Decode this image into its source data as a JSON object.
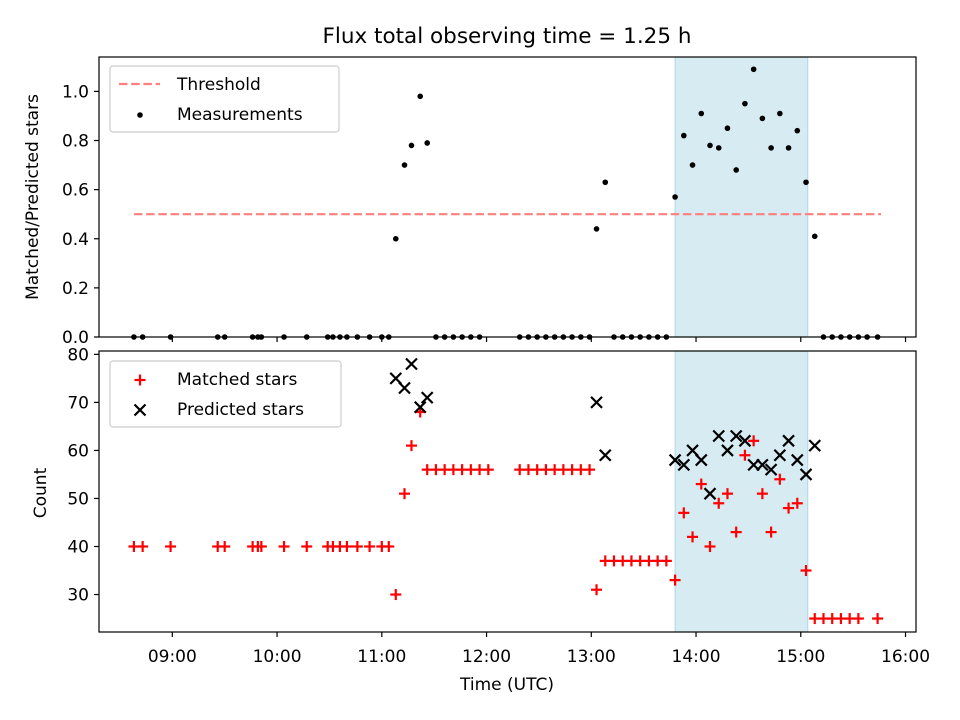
{
  "chart_data": [
    {
      "type": "scatter",
      "title": "Flux total observing time = 1.25 h",
      "xlabel": "",
      "ylabel": "Matched/Predicted stars",
      "xlim": [
        "08:18",
        "16:06"
      ],
      "ylim": [
        0,
        1.14
      ],
      "yticks": [
        "0.0",
        "0.2",
        "0.4",
        "0.6",
        "0.8",
        "1.0"
      ],
      "grid": false,
      "legend_position": "upper-left",
      "shaded_span": {
        "x0": "13:48",
        "x1": "15:04",
        "color": "#add8e6"
      },
      "threshold": {
        "name": "Threshold",
        "value": 0.5,
        "x0": "08:38",
        "x1": "15:46",
        "color": "#ff7f7f",
        "style": "dashed"
      },
      "series": [
        {
          "name": "Measurements",
          "color": "#000000",
          "marker": "dot",
          "points": [
            [
              "08:38",
              0
            ],
            [
              "08:43",
              0
            ],
            [
              "08:59",
              0
            ],
            [
              "09:26",
              0
            ],
            [
              "09:30",
              0
            ],
            [
              "09:46",
              0
            ],
            [
              "09:49",
              0
            ],
            [
              "09:51",
              0
            ],
            [
              "10:04",
              0
            ],
            [
              "10:17",
              0
            ],
            [
              "10:29",
              0
            ],
            [
              "10:32",
              0
            ],
            [
              "10:36",
              0
            ],
            [
              "10:40",
              0
            ],
            [
              "10:46",
              0
            ],
            [
              "10:53",
              0
            ],
            [
              "11:00",
              0
            ],
            [
              "11:04",
              0
            ],
            [
              "11:08",
              0.4
            ],
            [
              "11:13",
              0.7
            ],
            [
              "11:17",
              0.78
            ],
            [
              "11:22",
              0.98
            ],
            [
              "11:26",
              0.79
            ],
            [
              "11:31",
              0
            ],
            [
              "11:36",
              0
            ],
            [
              "11:41",
              0
            ],
            [
              "11:46",
              0
            ],
            [
              "11:51",
              0
            ],
            [
              "11:56",
              0
            ],
            [
              "12:19",
              0
            ],
            [
              "12:24",
              0
            ],
            [
              "12:29",
              0
            ],
            [
              "12:34",
              0
            ],
            [
              "12:39",
              0
            ],
            [
              "12:44",
              0
            ],
            [
              "12:49",
              0
            ],
            [
              "12:54",
              0
            ],
            [
              "12:59",
              0
            ],
            [
              "13:03",
              0.44
            ],
            [
              "13:08",
              0.63
            ],
            [
              "13:13",
              0
            ],
            [
              "13:18",
              0
            ],
            [
              "13:23",
              0
            ],
            [
              "13:28",
              0
            ],
            [
              "13:33",
              0
            ],
            [
              "13:38",
              0
            ],
            [
              "13:43",
              0
            ],
            [
              "13:48",
              0.57
            ],
            [
              "13:53",
              0.82
            ],
            [
              "13:58",
              0.7
            ],
            [
              "14:03",
              0.91
            ],
            [
              "14:08",
              0.78
            ],
            [
              "14:13",
              0.77
            ],
            [
              "14:18",
              0.85
            ],
            [
              "14:23",
              0.68
            ],
            [
              "14:28",
              0.95
            ],
            [
              "14:33",
              1.09
            ],
            [
              "14:38",
              0.89
            ],
            [
              "14:43",
              0.77
            ],
            [
              "14:48",
              0.91
            ],
            [
              "14:53",
              0.77
            ],
            [
              "14:58",
              0.84
            ],
            [
              "15:03",
              0.63
            ],
            [
              "15:08",
              0.41
            ],
            [
              "15:13",
              0
            ],
            [
              "15:18",
              0
            ],
            [
              "15:23",
              0
            ],
            [
              "15:28",
              0
            ],
            [
              "15:33",
              0
            ],
            [
              "15:38",
              0
            ],
            [
              "15:44",
              0
            ]
          ]
        }
      ]
    },
    {
      "type": "scatter",
      "title": "",
      "xlabel": "Time (UTC)",
      "ylabel": "Count",
      "xlim": [
        "08:18",
        "16:06"
      ],
      "ylim": [
        22.2,
        80.7
      ],
      "yticks": [
        "30",
        "40",
        "50",
        "60",
        "70",
        "80"
      ],
      "xticks": [
        "09:00",
        "10:00",
        "11:00",
        "12:00",
        "13:00",
        "14:00",
        "15:00",
        "16:00"
      ],
      "grid": false,
      "legend_position": "upper-left",
      "shaded_span": {
        "x0": "13:48",
        "x1": "15:04",
        "color": "#add8e6"
      },
      "series": [
        {
          "name": "Matched stars",
          "color": "#ff0000",
          "marker": "plus",
          "points": [
            [
              "08:38",
              40
            ],
            [
              "08:43",
              40
            ],
            [
              "08:59",
              40
            ],
            [
              "09:26",
              40
            ],
            [
              "09:30",
              40
            ],
            [
              "09:46",
              40
            ],
            [
              "09:49",
              40
            ],
            [
              "09:51",
              40
            ],
            [
              "10:04",
              40
            ],
            [
              "10:17",
              40
            ],
            [
              "10:29",
              40
            ],
            [
              "10:32",
              40
            ],
            [
              "10:36",
              40
            ],
            [
              "10:40",
              40
            ],
            [
              "10:46",
              40
            ],
            [
              "10:53",
              40
            ],
            [
              "11:00",
              40
            ],
            [
              "11:04",
              40
            ],
            [
              "11:08",
              30
            ],
            [
              "11:13",
              51
            ],
            [
              "11:17",
              61
            ],
            [
              "11:22",
              68
            ],
            [
              "11:26",
              56
            ],
            [
              "11:31",
              56
            ],
            [
              "11:36",
              56
            ],
            [
              "11:41",
              56
            ],
            [
              "11:46",
              56
            ],
            [
              "11:51",
              56
            ],
            [
              "11:56",
              56
            ],
            [
              "12:01",
              56
            ],
            [
              "12:19",
              56
            ],
            [
              "12:24",
              56
            ],
            [
              "12:29",
              56
            ],
            [
              "12:34",
              56
            ],
            [
              "12:39",
              56
            ],
            [
              "12:44",
              56
            ],
            [
              "12:49",
              56
            ],
            [
              "12:54",
              56
            ],
            [
              "12:59",
              56
            ],
            [
              "13:03",
              31
            ],
            [
              "13:08",
              37
            ],
            [
              "13:13",
              37
            ],
            [
              "13:18",
              37
            ],
            [
              "13:23",
              37
            ],
            [
              "13:28",
              37
            ],
            [
              "13:33",
              37
            ],
            [
              "13:38",
              37
            ],
            [
              "13:43",
              37
            ],
            [
              "13:48",
              33
            ],
            [
              "13:53",
              47
            ],
            [
              "13:58",
              42
            ],
            [
              "14:03",
              53
            ],
            [
              "14:08",
              40
            ],
            [
              "14:13",
              49
            ],
            [
              "14:18",
              51
            ],
            [
              "14:23",
              43
            ],
            [
              "14:28",
              59
            ],
            [
              "14:33",
              62
            ],
            [
              "14:38",
              51
            ],
            [
              "14:43",
              43
            ],
            [
              "14:48",
              54
            ],
            [
              "14:53",
              48
            ],
            [
              "14:58",
              49
            ],
            [
              "15:03",
              35
            ],
            [
              "15:08",
              25
            ],
            [
              "15:13",
              25
            ],
            [
              "15:18",
              25
            ],
            [
              "15:23",
              25
            ],
            [
              "15:28",
              25
            ],
            [
              "15:33",
              25
            ],
            [
              "15:44",
              25
            ]
          ]
        },
        {
          "name": "Predicted stars",
          "color": "#000000",
          "marker": "x",
          "points": [
            [
              "11:08",
              75
            ],
            [
              "11:13",
              73
            ],
            [
              "11:17",
              78
            ],
            [
              "11:22",
              69
            ],
            [
              "11:26",
              71
            ],
            [
              "13:03",
              70
            ],
            [
              "13:08",
              59
            ],
            [
              "13:48",
              58
            ],
            [
              "13:53",
              57
            ],
            [
              "13:58",
              60
            ],
            [
              "14:03",
              58
            ],
            [
              "14:08",
              51
            ],
            [
              "14:13",
              63
            ],
            [
              "14:18",
              60
            ],
            [
              "14:23",
              63
            ],
            [
              "14:28",
              62
            ],
            [
              "14:33",
              57
            ],
            [
              "14:38",
              57
            ],
            [
              "14:43",
              56
            ],
            [
              "14:48",
              59
            ],
            [
              "14:53",
              62
            ],
            [
              "14:58",
              58
            ],
            [
              "15:03",
              55
            ],
            [
              "15:08",
              61
            ]
          ]
        }
      ]
    }
  ]
}
